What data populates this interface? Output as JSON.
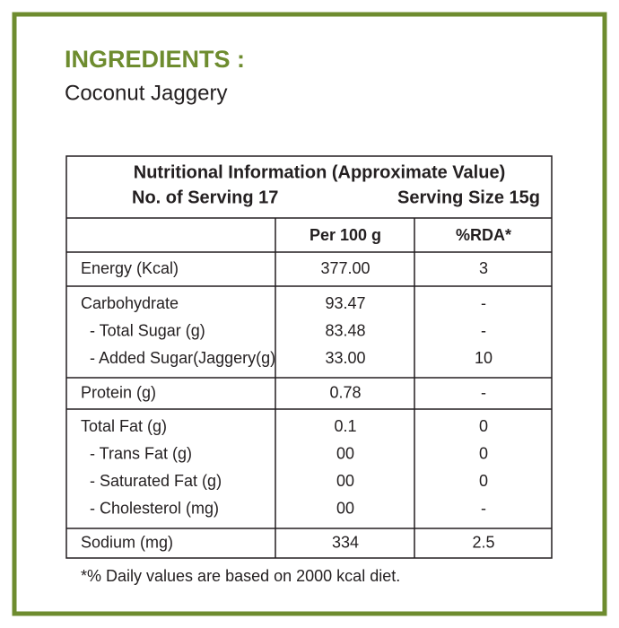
{
  "header": {
    "title": "INGREDIENTS :",
    "ingredients": "Coconut Jaggery"
  },
  "table": {
    "title": "Nutritional Information (Approximate Value)",
    "serving_count": "No. of Serving 17",
    "serving_size": "Serving Size 15g",
    "columns": [
      "Per 100 g",
      "%RDA*"
    ],
    "groups": [
      {
        "label": "Energy (Kcal)",
        "value": "377.00",
        "rda": "3",
        "items": []
      },
      {
        "label": "Carbohydrate",
        "value": "93.47",
        "rda": "-",
        "items": [
          {
            "label": "- Total Sugar (g)",
            "value": "83.48",
            "rda": "-"
          },
          {
            "label": "- Added Sugar(Jaggery(g)",
            "value": "33.00",
            "rda": "10"
          }
        ]
      },
      {
        "label": "Protein (g)",
        "value": "0.78",
        "rda": "-",
        "items": []
      },
      {
        "label": "Total Fat (g)",
        "value": "0.1",
        "rda": "0",
        "items": [
          {
            "label": "- Trans Fat (g)",
            "value": "00",
            "rda": "0"
          },
          {
            "label": "- Saturated Fat (g)",
            "value": "00",
            "rda": "0"
          },
          {
            "label": "- Cholesterol (mg)",
            "value": "00",
            "rda": "-"
          }
        ]
      },
      {
        "label": "Sodium (mg)",
        "value": "334",
        "rda": "2.5",
        "items": []
      }
    ]
  },
  "footnote": "*% Daily values are based on 2000 kcal diet."
}
